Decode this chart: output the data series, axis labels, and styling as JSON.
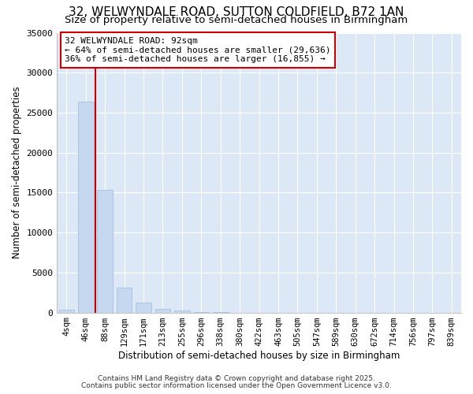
{
  "title": "32, WELWYNDALE ROAD, SUTTON COLDFIELD, B72 1AN",
  "subtitle": "Size of property relative to semi-detached houses in Birmingham",
  "xlabel": "Distribution of semi-detached houses by size in Birmingham",
  "ylabel": "Number of semi-detached properties",
  "categories": [
    "4sqm",
    "46sqm",
    "88sqm",
    "129sqm",
    "171sqm",
    "213sqm",
    "255sqm",
    "296sqm",
    "338sqm",
    "380sqm",
    "422sqm",
    "463sqm",
    "505sqm",
    "547sqm",
    "589sqm",
    "630sqm",
    "672sqm",
    "714sqm",
    "756sqm",
    "797sqm",
    "839sqm"
  ],
  "values": [
    400,
    26400,
    15300,
    3100,
    1200,
    450,
    280,
    60,
    15,
    8,
    4,
    2,
    1,
    1,
    0,
    0,
    0,
    0,
    0,
    0,
    0
  ],
  "bar_color": "#c5d8f0",
  "bar_edgecolor": "#9bbcdf",
  "property_line_color": "#cc0000",
  "annotation_text": "32 WELWYNDALE ROAD: 92sqm\n← 64% of semi-detached houses are smaller (29,636)\n36% of semi-detached houses are larger (16,855) →",
  "annotation_box_color": "#ffffff",
  "annotation_box_edgecolor": "#cc0000",
  "ylim": [
    0,
    35000
  ],
  "yticks": [
    0,
    5000,
    10000,
    15000,
    20000,
    25000,
    30000,
    35000
  ],
  "bg_color": "#ffffff",
  "axes_bg_color": "#dce8f5",
  "grid_color": "#ffffff",
  "footer1": "Contains HM Land Registry data © Crown copyright and database right 2025.",
  "footer2": "Contains public sector information licensed under the Open Government Licence v3.0.",
  "title_fontsize": 11,
  "subtitle_fontsize": 9.5
}
